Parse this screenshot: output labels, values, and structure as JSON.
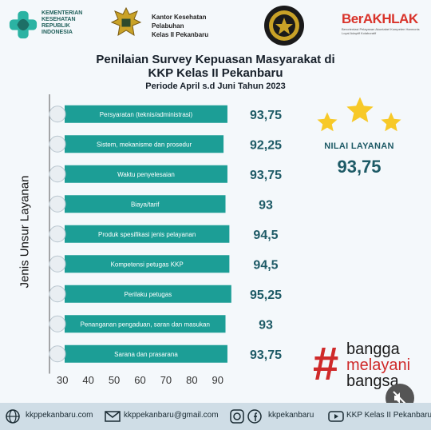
{
  "header": {
    "kemenkes_lines": [
      "KEMENTERIAN",
      "KESEHATAN",
      "REPUBLIK",
      "INDONESIA"
    ],
    "kkp_lines": [
      "Kantor Kesehatan",
      "Pelabuhan",
      "Kelas II Pekanbaru"
    ],
    "berakhlak": "BerAKHLAK",
    "berakhlak_sub": "Berorientasi Pelayanan Akuntabel Kompeten Harmonis Loyal Adaptif Kolaboratif"
  },
  "title": {
    "line1": "Penilaian Survey Kepuasan Masyarakat di",
    "line2": "KKP Kelas II Pekanbaru",
    "line3": "Periode April s.d Juni Tahun 2023"
  },
  "chart_data": {
    "type": "bar",
    "orientation": "horizontal",
    "ylabel": "Jenis Unsur Layanan",
    "xlim": [
      25,
      95
    ],
    "xticks": [
      30,
      40,
      50,
      60,
      70,
      80,
      90
    ],
    "categories": [
      "Persyaratan (teknis/administrasi)",
      "Sistem, mekanisme dan prosedur",
      "Waktu penyelesaian",
      "Biaya/tarif",
      "Produk spesifikasi jenis pelayanan",
      "Kompetensi petugas KKP",
      "Perilaku petugas",
      "Penanganan pengaduan, saran dan masukan",
      "Sarana dan prasarana"
    ],
    "values": [
      93.75,
      92.25,
      93.75,
      93,
      94.5,
      94.5,
      95.25,
      93,
      93.75
    ],
    "value_labels": [
      "93,75",
      "92,25",
      "93,75",
      "93",
      "94,5",
      "94,5",
      "95,25",
      "93",
      "93,75"
    ],
    "bar_color": "#1c9e96",
    "label_color": "#1d5a66",
    "grid": false
  },
  "summary": {
    "label": "NILAI LAYANAN",
    "value": "93,75"
  },
  "hashtag": {
    "symbol": "#",
    "words": [
      "bangga",
      "melayani",
      "bangsa"
    ]
  },
  "footer": {
    "website": "kkppekanbaru.com",
    "email": "kkppekanbaru@gmail.com",
    "social": "kkpekanbaru",
    "youtube": "KKP Kelas II Pekanbaru"
  },
  "colors": {
    "accent": "#1c9e96",
    "brand_red": "#cf2a2a",
    "star": "#f7c928"
  }
}
